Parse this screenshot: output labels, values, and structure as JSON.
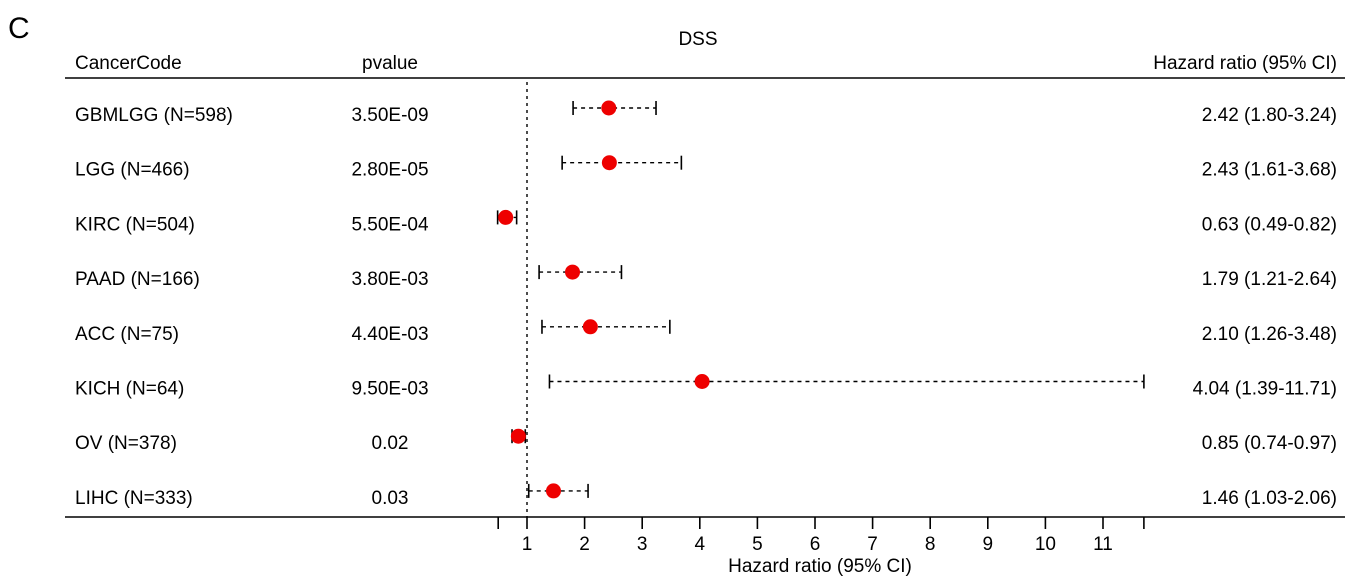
{
  "panel_label": "C",
  "chart_data": {
    "type": "forest",
    "title": "DSS",
    "columns": {
      "cancer": "CancerCode",
      "pvalue": "pvalue",
      "hr": "Hazard ratio (95% CI)"
    },
    "xlabel": "Hazard ratio (95% CI)",
    "xlim": [
      0.5,
      11.71
    ],
    "reference_line": 1,
    "x_ticks": [
      1,
      2,
      3,
      4,
      5,
      6,
      7,
      8,
      9,
      10,
      11
    ],
    "x_tick_labels": [
      "1",
      "2",
      "3",
      "4",
      "5",
      "6",
      "7",
      "8",
      "9",
      "10",
      "11"
    ],
    "marker_color": "#ee0000",
    "rows": [
      {
        "label": "GBMLGG (N=598)",
        "pvalue": "3.50E-09",
        "hr": 2.42,
        "lo": 1.8,
        "hi": 3.24,
        "hr_text": "2.42 (1.80-3.24)"
      },
      {
        "label": "LGG (N=466)",
        "pvalue": "2.80E-05",
        "hr": 2.43,
        "lo": 1.61,
        "hi": 3.68,
        "hr_text": "2.43 (1.61-3.68)"
      },
      {
        "label": "KIRC (N=504)",
        "pvalue": "5.50E-04",
        "hr": 0.63,
        "lo": 0.49,
        "hi": 0.82,
        "hr_text": "0.63 (0.49-0.82)"
      },
      {
        "label": "PAAD (N=166)",
        "pvalue": "3.80E-03",
        "hr": 1.79,
        "lo": 1.21,
        "hi": 2.64,
        "hr_text": "1.79 (1.21-2.64)"
      },
      {
        "label": "ACC (N=75)",
        "pvalue": "4.40E-03",
        "hr": 2.1,
        "lo": 1.26,
        "hi": 3.48,
        "hr_text": "2.10 (1.26-3.48)"
      },
      {
        "label": "KICH (N=64)",
        "pvalue": "9.50E-03",
        "hr": 4.04,
        "lo": 1.39,
        "hi": 11.71,
        "hr_text": "4.04 (1.39-11.71)"
      },
      {
        "label": "OV (N=378)",
        "pvalue": "0.02",
        "hr": 0.85,
        "lo": 0.74,
        "hi": 0.97,
        "hr_text": "0.85 (0.74-0.97)"
      },
      {
        "label": "LIHC (N=333)",
        "pvalue": "0.03",
        "hr": 1.46,
        "lo": 1.03,
        "hi": 2.06,
        "hr_text": "1.46 (1.03-2.06)"
      }
    ]
  }
}
